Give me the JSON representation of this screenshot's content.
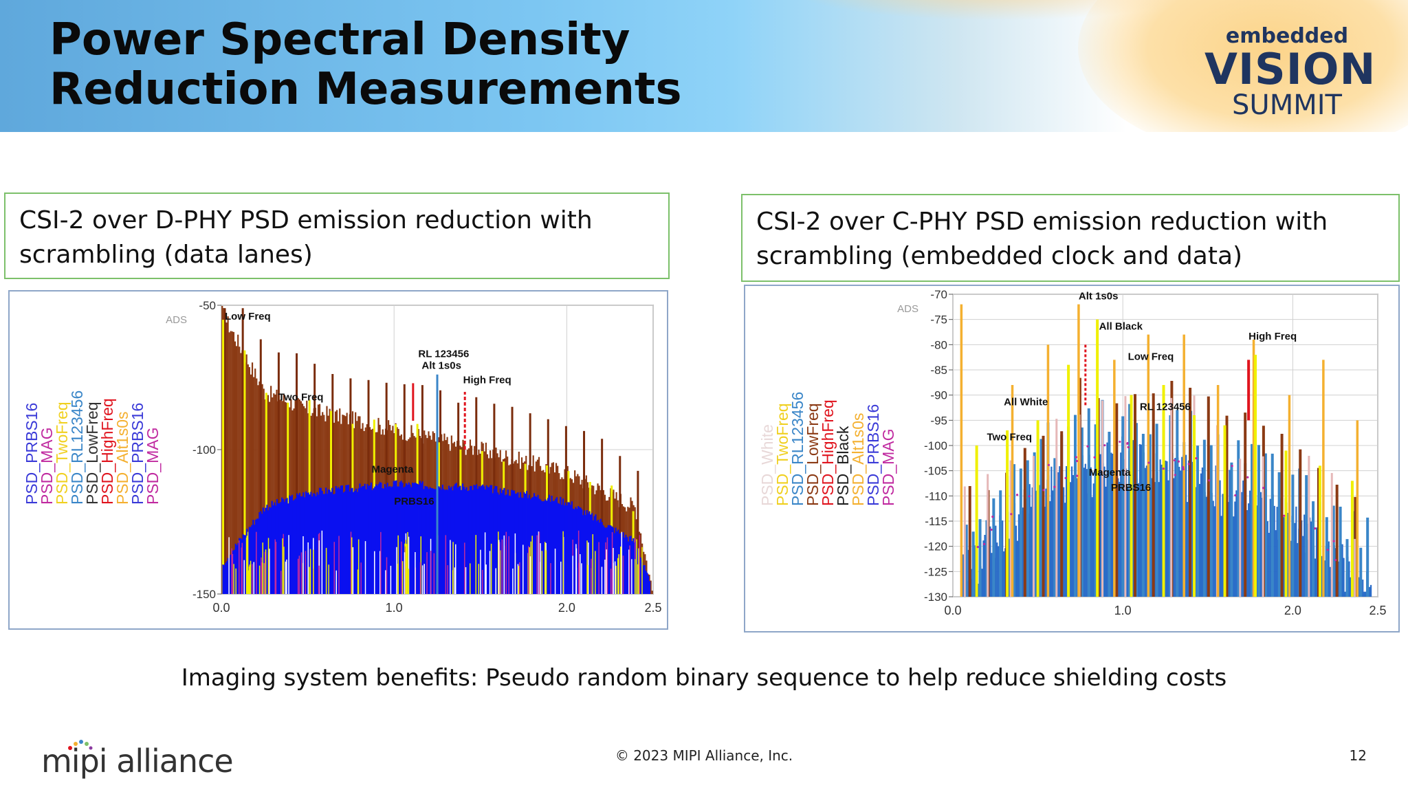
{
  "header": {
    "title": "Power Spectral Density Reduction Measurements",
    "logo": {
      "line1": "embedded",
      "line2": "VISION",
      "line3": "SUMMIT"
    }
  },
  "left_panel": {
    "heading": "CSI-2 over D-PHY PSD emission reduction with scrambling (data lanes)"
  },
  "right_panel": {
    "heading": "CSI-2 over C-PHY PSD emission reduction with scrambling (embedded clock and data)"
  },
  "caption": "Imaging system benefits: Pseudo random binary sequence to help reduce shielding costs",
  "footer": {
    "copyright": "© 2023 MIPI Alliance, Inc.",
    "page": "12",
    "logo_text": "mipi alliance"
  },
  "colors": {
    "brown": "#8b3a14",
    "blue": "#0a10f0",
    "yellow": "#f0f000",
    "red": "#e0141e",
    "magenta": "#c02aa0",
    "steel": "#3a86c8",
    "orange": "#f4b030",
    "pink": "#e6b8b8",
    "black": "#222222"
  },
  "chart_data": [
    {
      "type": "area",
      "corner_label": "ADS",
      "xlim": [
        0,
        2.5
      ],
      "ylim": [
        -150,
        -50
      ],
      "xticks": [
        "0.0",
        "1.0",
        "2.0",
        "2.5"
      ],
      "yticks": [
        "-50",
        "-100",
        "-150"
      ],
      "legend": [
        {
          "name": "PSD_PRBS16",
          "color": "#3a3ad8"
        },
        {
          "name": "PSD_MAG",
          "color": "#c02aa0"
        },
        {
          "name": "PSD_TwoFreq",
          "color": "#f0d020"
        },
        {
          "name": "PSD_RL123456",
          "color": "#3a86c8"
        },
        {
          "name": "PSD_LowFreq",
          "color": "#333333"
        },
        {
          "name": "PSD_HighFreq",
          "color": "#e0141e"
        },
        {
          "name": "PSD_Alt1s0s",
          "color": "#f4b030"
        },
        {
          "name": "PSD_PRBS16",
          "color": "#3a3ad8"
        },
        {
          "name": "PSD_MAG",
          "color": "#c02aa0"
        }
      ],
      "annotations": [
        {
          "text": "Low Freq",
          "x": 0.02,
          "y": -55
        },
        {
          "text": "Two Freq",
          "x": 0.33,
          "y": -83
        },
        {
          "text": "RL 123456",
          "x": 1.14,
          "y": -68
        },
        {
          "text": "Alt 1s0s",
          "x": 1.16,
          "y": -72
        },
        {
          "text": "High Freq",
          "x": 1.4,
          "y": -77
        },
        {
          "text": "Magenta",
          "x": 0.87,
          "y": -108
        },
        {
          "text": "PRBS16",
          "x": 1.0,
          "y": -119
        }
      ],
      "series": [
        {
          "name": "Low Freq",
          "note": "brown envelope",
          "values_at_x": {
            "0.0": -52,
            "0.25": -80,
            "0.5": -86,
            "1.0": -93,
            "1.5": -100,
            "2.0": -108,
            "2.4": -120,
            "2.5": -150
          }
        },
        {
          "name": "PRBS16",
          "note": "blue dome",
          "values_at_x": {
            "0.0": -140,
            "0.25": -120,
            "0.5": -115,
            "1.0": -112,
            "1.5": -113,
            "2.0": -118,
            "2.4": -132,
            "2.5": -150
          }
        }
      ]
    },
    {
      "type": "bar",
      "corner_label": "ADS",
      "xlim": [
        0,
        2.5
      ],
      "ylim": [
        -130,
        -70
      ],
      "xticks": [
        "0.0",
        "1.0",
        "2.0",
        "2.5"
      ],
      "yticks": [
        "-70",
        "-75",
        "-80",
        "-85",
        "-90",
        "-95",
        "-100",
        "-105",
        "-110",
        "-115",
        "-120",
        "-125",
        "-130"
      ],
      "legend": [
        {
          "name": "PSD_White",
          "color": "#e8d8d8"
        },
        {
          "name": "PSD_TwoFreq",
          "color": "#f0d020"
        },
        {
          "name": "PSD_RL123456",
          "color": "#3a86c8"
        },
        {
          "name": "PSD_LowFreq",
          "color": "#8b3a14"
        },
        {
          "name": "PSD_HighFreq",
          "color": "#e0141e"
        },
        {
          "name": "PSD_Black",
          "color": "#222222"
        },
        {
          "name": "PSD_Alt1s0s",
          "color": "#f4b030"
        },
        {
          "name": "PSD_PRBS16",
          "color": "#3a3ad8"
        },
        {
          "name": "PSD_MAG",
          "color": "#c02aa0"
        }
      ],
      "annotations": [
        {
          "text": "Alt 1s0s",
          "x": 0.74,
          "y": -71
        },
        {
          "text": "All Black",
          "x": 0.86,
          "y": -77
        },
        {
          "text": "High Freq",
          "x": 1.74,
          "y": -79
        },
        {
          "text": "Low Freq",
          "x": 1.03,
          "y": -83
        },
        {
          "text": "All White",
          "x": 0.3,
          "y": -92
        },
        {
          "text": "RL 123456",
          "x": 1.1,
          "y": -93
        },
        {
          "text": "Two Freq",
          "x": 0.2,
          "y": -99
        },
        {
          "text": "Magenta",
          "x": 0.8,
          "y": -106
        },
        {
          "text": "PRBS16",
          "x": 0.93,
          "y": -109
        }
      ],
      "series": [
        {
          "name": "Alt1s0s peaks",
          "x": [
            0.05,
            0.35,
            0.56,
            0.74,
            0.95,
            1.15,
            1.36,
            1.56,
            1.77,
            1.98,
            2.18,
            2.38
          ],
          "values": [
            -72,
            -88,
            -80,
            -72,
            -83,
            -78,
            -78,
            -88,
            -79,
            -90,
            -83,
            -95
          ]
        },
        {
          "name": "TwoFreq peaks",
          "x": [
            0.14,
            0.32,
            0.5,
            0.68,
            0.85,
            1.05,
            1.24,
            1.42,
            1.6,
            1.78,
            1.96,
            2.16,
            2.35
          ],
          "values": [
            -100,
            -97,
            -95,
            -84,
            -75,
            -90,
            -88,
            -94,
            -96,
            -82,
            -101,
            -104,
            -107
          ]
        },
        {
          "name": "PRBS16",
          "note": "blue noise floor",
          "values_at_x": {
            "0.1": -125,
            "0.5": -110,
            "1.0": -103,
            "1.5": -108,
            "2.0": -115,
            "2.4": -128
          }
        }
      ]
    }
  ]
}
